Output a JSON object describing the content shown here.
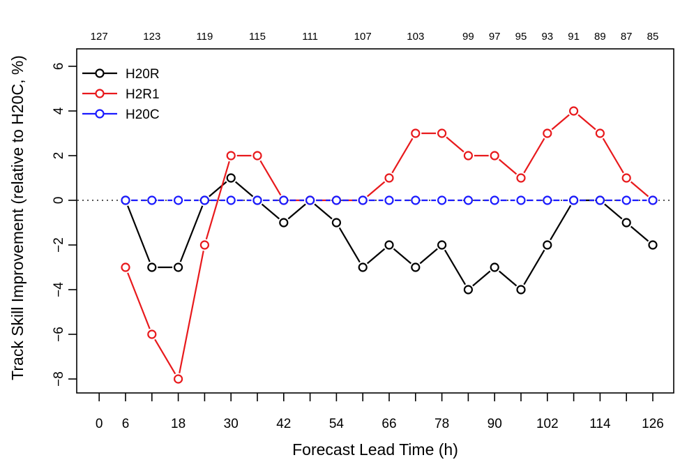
{
  "chart_data": {
    "type": "line",
    "title": "",
    "xlabel": "Forecast Lead Time (h)",
    "ylabel": "Track Skill Improvement (relative to H20C, %)",
    "xlim": [
      -6,
      132
    ],
    "ylim": [
      -8.5,
      6.5
    ],
    "x_ticks": [
      0,
      6,
      18,
      30,
      42,
      54,
      66,
      78,
      90,
      102,
      114,
      126
    ],
    "y_ticks": [
      -8,
      -6,
      -4,
      -2,
      0,
      2,
      4,
      6
    ],
    "x_minor_ticks": [
      12,
      24,
      36,
      48,
      60,
      72,
      84,
      96,
      108,
      120
    ],
    "top_axis": {
      "positions": [
        0,
        12,
        24,
        36,
        48,
        60,
        72,
        84,
        90,
        96,
        102,
        108,
        114,
        120,
        126
      ],
      "labels": [
        "127",
        "123",
        "119",
        "115",
        "111",
        "107",
        "103",
        "99",
        "97",
        "95",
        "93",
        "91",
        "89",
        "87",
        "85"
      ]
    },
    "reference_line": {
      "y": 0,
      "style": "dotted"
    },
    "x": [
      6,
      12,
      18,
      24,
      30,
      36,
      42,
      48,
      54,
      60,
      66,
      72,
      78,
      84,
      90,
      96,
      102,
      108,
      114,
      120,
      126
    ],
    "series": [
      {
        "name": "H20R",
        "color": "#000000",
        "values": [
          0,
          -3,
          -3,
          0,
          1,
          0,
          -1,
          0,
          -1,
          -3,
          -2,
          -3,
          -2,
          -4,
          -3,
          -4,
          -2,
          0,
          0,
          -1,
          -2
        ]
      },
      {
        "name": "H2R1",
        "color": "#e8191c",
        "values": [
          -3,
          -6,
          -8,
          -2,
          2,
          2,
          0,
          0,
          0,
          0,
          1,
          3,
          3,
          2,
          2,
          1,
          3,
          4,
          3,
          1,
          0
        ]
      },
      {
        "name": "H20C",
        "color": "#1a1aff",
        "dashed": true,
        "values": [
          0,
          0,
          0,
          0,
          0,
          0,
          0,
          0,
          0,
          0,
          0,
          0,
          0,
          0,
          0,
          0,
          0,
          0,
          0,
          0,
          0
        ]
      }
    ],
    "legend": {
      "position": "top-left",
      "border": false
    },
    "grid": false
  }
}
